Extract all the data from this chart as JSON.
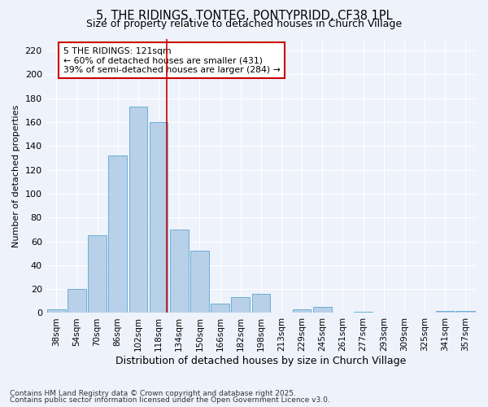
{
  "title": "5, THE RIDINGS, TONTEG, PONTYPRIDD, CF38 1PL",
  "subtitle": "Size of property relative to detached houses in Church Village",
  "xlabel": "Distribution of detached houses by size in Church Village",
  "ylabel": "Number of detached properties",
  "categories": [
    "38sqm",
    "54sqm",
    "70sqm",
    "86sqm",
    "102sqm",
    "118sqm",
    "134sqm",
    "150sqm",
    "166sqm",
    "182sqm",
    "198sqm",
    "213sqm",
    "229sqm",
    "245sqm",
    "261sqm",
    "277sqm",
    "293sqm",
    "309sqm",
    "325sqm",
    "341sqm",
    "357sqm"
  ],
  "values": [
    3,
    20,
    65,
    132,
    173,
    160,
    70,
    52,
    8,
    13,
    16,
    0,
    3,
    5,
    0,
    1,
    0,
    0,
    0,
    2,
    2
  ],
  "bar_color": "#b8d0e8",
  "bar_edgecolor": "#6baed6",
  "vline_x": 5.4,
  "vline_color": "#cc0000",
  "annotation_text": "5 THE RIDINGS: 121sqm\n← 60% of detached houses are smaller (431)\n39% of semi-detached houses are larger (284) →",
  "annotation_box_color": "#cc0000",
  "annotation_text_color": "#000000",
  "ylim": [
    0,
    230
  ],
  "yticks": [
    0,
    20,
    40,
    60,
    80,
    100,
    120,
    140,
    160,
    180,
    200,
    220
  ],
  "background_color": "#eef2fb",
  "grid_color": "#ffffff",
  "footer_line1": "Contains HM Land Registry data © Crown copyright and database right 2025.",
  "footer_line2": "Contains public sector information licensed under the Open Government Licence v3.0.",
  "title_fontsize": 10.5,
  "subtitle_fontsize": 9,
  "annotation_fontsize": 7.8,
  "ylabel_fontsize": 8,
  "xlabel_fontsize": 9
}
